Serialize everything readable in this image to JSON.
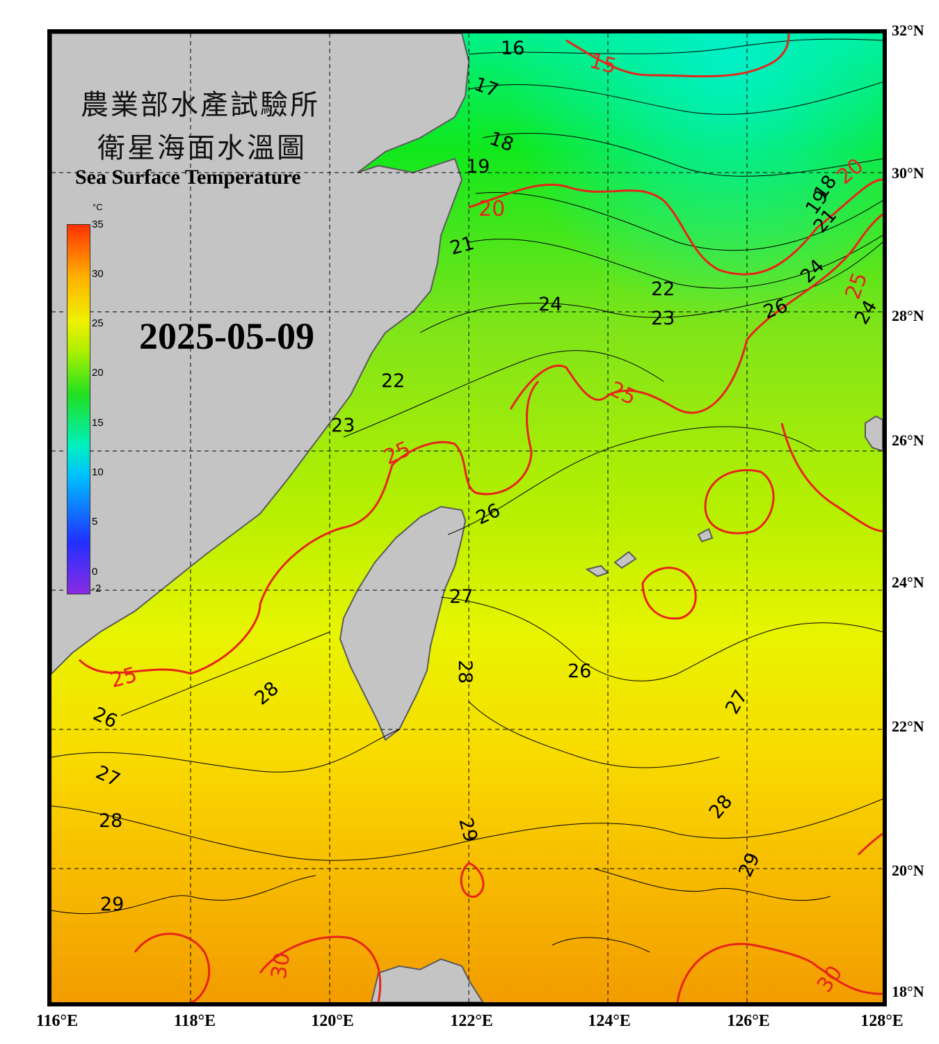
{
  "title": {
    "line1": "農業部水產試驗所",
    "line2": "衛星海面水溫圖",
    "english": "Sea Surface Temperature"
  },
  "date": "2025-05-09",
  "colorbar": {
    "unit": "°C",
    "ticks": [
      "35",
      "30",
      "25",
      "20",
      "15",
      "10",
      "5",
      "0",
      "-2"
    ],
    "min": -2,
    "max": 35
  },
  "axes": {
    "lat_labels": [
      "32°N",
      "30°N",
      "28°N",
      "26°N",
      "24°N",
      "22°N",
      "20°N",
      "18°N"
    ],
    "lon_labels": [
      "116°E",
      "118°E",
      "120°E",
      "122°E",
      "124°E",
      "126°E",
      "128°E"
    ],
    "lat_range": [
      18,
      32
    ],
    "lon_range": [
      116,
      128
    ],
    "grid": "dashed"
  },
  "isotherm_labels": {
    "black": [
      "16",
      "17",
      "18",
      "19",
      "21",
      "22",
      "24",
      "22",
      "23",
      "26",
      "24",
      "22",
      "23",
      "26",
      "27",
      "28",
      "28",
      "26",
      "27",
      "28",
      "28",
      "29",
      "29",
      "26",
      "27",
      "28",
      "29",
      "18",
      "19",
      "21",
      "24"
    ],
    "red": [
      "15",
      "20",
      "20",
      "25",
      "25",
      "25",
      "25",
      "30",
      "30",
      "25"
    ]
  },
  "colors": {
    "land": "#c4c4c4",
    "coast": "#5a5a5a",
    "isotherm": "#000000",
    "isotherm_major": "#e8231a",
    "sst_cold": "#00f0a0",
    "sst_mid": "#a8f000",
    "sst_warm": "#f7a400"
  }
}
